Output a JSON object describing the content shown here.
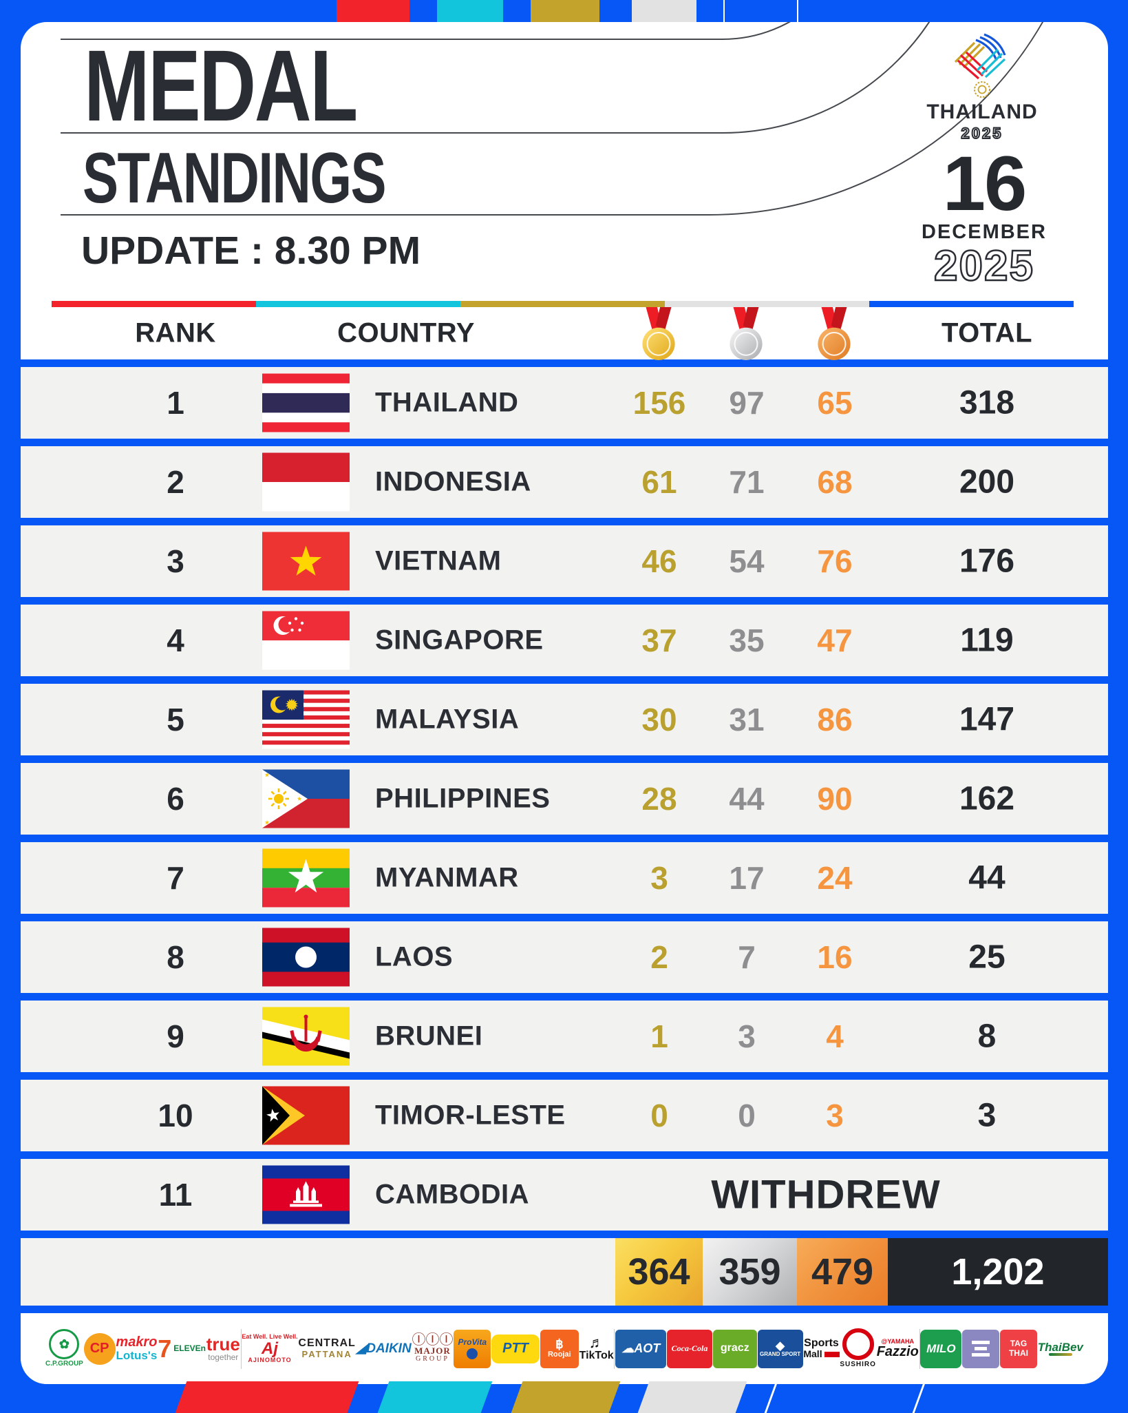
{
  "header": {
    "title_line1": "MEDAL",
    "title_line2": "STANDINGS",
    "update_label": "UPDATE :",
    "update_time": "8.30 PM",
    "logo": {
      "name": "THAILAND",
      "year": "2025"
    },
    "date": {
      "day": "16",
      "month": "DECEMBER",
      "year": "2025"
    }
  },
  "table": {
    "headers": {
      "rank": "RANK",
      "country": "COUNTRY",
      "total": "TOTAL"
    },
    "medal_columns": [
      "gold-medal-icon",
      "silver-medal-icon",
      "bronze-medal-icon"
    ],
    "rows": [
      {
        "rank": "1",
        "country": "THAILAND",
        "flag": "thailand",
        "gold": "156",
        "silver": "97",
        "bronze": "65",
        "total": "318"
      },
      {
        "rank": "2",
        "country": "INDONESIA",
        "flag": "indonesia",
        "gold": "61",
        "silver": "71",
        "bronze": "68",
        "total": "200"
      },
      {
        "rank": "3",
        "country": "VIETNAM",
        "flag": "vietnam",
        "gold": "46",
        "silver": "54",
        "bronze": "76",
        "total": "176"
      },
      {
        "rank": "4",
        "country": "SINGAPORE",
        "flag": "singapore",
        "gold": "37",
        "silver": "35",
        "bronze": "47",
        "total": "119"
      },
      {
        "rank": "5",
        "country": "MALAYSIA",
        "flag": "malaysia",
        "gold": "30",
        "silver": "31",
        "bronze": "86",
        "total": "147"
      },
      {
        "rank": "6",
        "country": "PHILIPPINES",
        "flag": "philippines",
        "gold": "28",
        "silver": "44",
        "bronze": "90",
        "total": "162"
      },
      {
        "rank": "7",
        "country": "MYANMAR",
        "flag": "myanmar",
        "gold": "3",
        "silver": "17",
        "bronze": "24",
        "total": "44"
      },
      {
        "rank": "8",
        "country": "LAOS",
        "flag": "laos",
        "gold": "2",
        "silver": "7",
        "bronze": "16",
        "total": "25"
      },
      {
        "rank": "9",
        "country": "BRUNEI",
        "flag": "brunei",
        "gold": "1",
        "silver": "3",
        "bronze": "4",
        "total": "8"
      },
      {
        "rank": "10",
        "country": "TIMOR-LESTE",
        "flag": "timor-leste",
        "gold": "0",
        "silver": "0",
        "bronze": "3",
        "total": "3"
      },
      {
        "rank": "11",
        "country": "CAMBODIA",
        "flag": "cambodia",
        "status": "WITHDREW"
      }
    ],
    "totals": {
      "gold": "364",
      "silver": "359",
      "bronze": "479",
      "total": "1,202"
    }
  },
  "chart_data": {
    "type": "table",
    "title": "MEDAL STANDINGS",
    "updated": "8.30 PM",
    "date": "16 DECEMBER 2025",
    "columns": [
      "RANK",
      "COUNTRY",
      "GOLD",
      "SILVER",
      "BRONZE",
      "TOTAL"
    ],
    "rows": [
      [
        1,
        "THAILAND",
        156,
        97,
        65,
        318
      ],
      [
        2,
        "INDONESIA",
        61,
        71,
        68,
        200
      ],
      [
        3,
        "VIETNAM",
        46,
        54,
        76,
        176
      ],
      [
        4,
        "SINGAPORE",
        37,
        35,
        47,
        119
      ],
      [
        5,
        "MALAYSIA",
        30,
        31,
        86,
        147
      ],
      [
        6,
        "PHILIPPINES",
        28,
        44,
        90,
        162
      ],
      [
        7,
        "MYANMAR",
        3,
        17,
        24,
        44
      ],
      [
        8,
        "LAOS",
        2,
        7,
        16,
        25
      ],
      [
        9,
        "BRUNEI",
        1,
        3,
        4,
        8
      ],
      [
        10,
        "TIMOR-LESTE",
        0,
        0,
        3,
        3
      ],
      [
        11,
        "CAMBODIA",
        "WITHDREW",
        "WITHDREW",
        "WITHDREW",
        "WITHDREW"
      ]
    ],
    "totals": {
      "gold": 364,
      "silver": 359,
      "bronze": 479,
      "total": 1202
    }
  },
  "sponsors": [
    {
      "id": "cp-group",
      "label": "C.P.GROUP"
    },
    {
      "id": "cp",
      "label": "CP"
    },
    {
      "id": "makro-lotus",
      "label": "makro",
      "label2": "Lotus's"
    },
    {
      "id": "7-eleven",
      "label": "7",
      "label2": "ELEVEn"
    },
    {
      "id": "true",
      "label": "true",
      "label2": "together"
    },
    {
      "id": "divider"
    },
    {
      "id": "ajinomoto",
      "label": "Aj",
      "label2": "AJINOMOTO",
      "tagline": "Eat Well. Live Well."
    },
    {
      "id": "central-pattana",
      "label": "CENTRAL",
      "label2": "PATTANA"
    },
    {
      "id": "daikin",
      "label": "DAIKIN"
    },
    {
      "id": "major-group",
      "label": "MAJOR",
      "label2": "GROUP"
    },
    {
      "id": "provita",
      "label": "ProVita"
    },
    {
      "id": "ptt",
      "label": "PTT"
    },
    {
      "id": "roojai",
      "label": "Roojai"
    },
    {
      "id": "tiktok",
      "label": "TikTok"
    },
    {
      "id": "divider"
    },
    {
      "id": "aot",
      "label": "AOT"
    },
    {
      "id": "coca-cola",
      "label": "Coca-Cola"
    },
    {
      "id": "gracz",
      "label": "gracz"
    },
    {
      "id": "grand-sport",
      "label": "GRAND SPORT"
    },
    {
      "id": "sports-mall",
      "label": "Sports",
      "label2": "Mall"
    },
    {
      "id": "sushiro",
      "label": "SUSHIRO"
    },
    {
      "id": "fazzio",
      "label": "Fazzio",
      "tagline": "@YAMAHA"
    },
    {
      "id": "divider"
    },
    {
      "id": "milo",
      "label": "MILO"
    },
    {
      "id": "purple",
      "label": ""
    },
    {
      "id": "tag-thai",
      "label": "TAG",
      "label2": "THAI"
    },
    {
      "id": "thaibev",
      "label": "ThaiBev"
    }
  ],
  "colors": {
    "accent_blue": "#0657f6",
    "red": "#f3232b",
    "cyan": "#12c4dc",
    "gold_bar": "#c3a32b",
    "light_gray": "#e2e2e2",
    "gold_text": "#b9a02f",
    "silver_text": "#8e8e90",
    "bronze_text": "#f6953f",
    "dark_text": "#26292e"
  }
}
